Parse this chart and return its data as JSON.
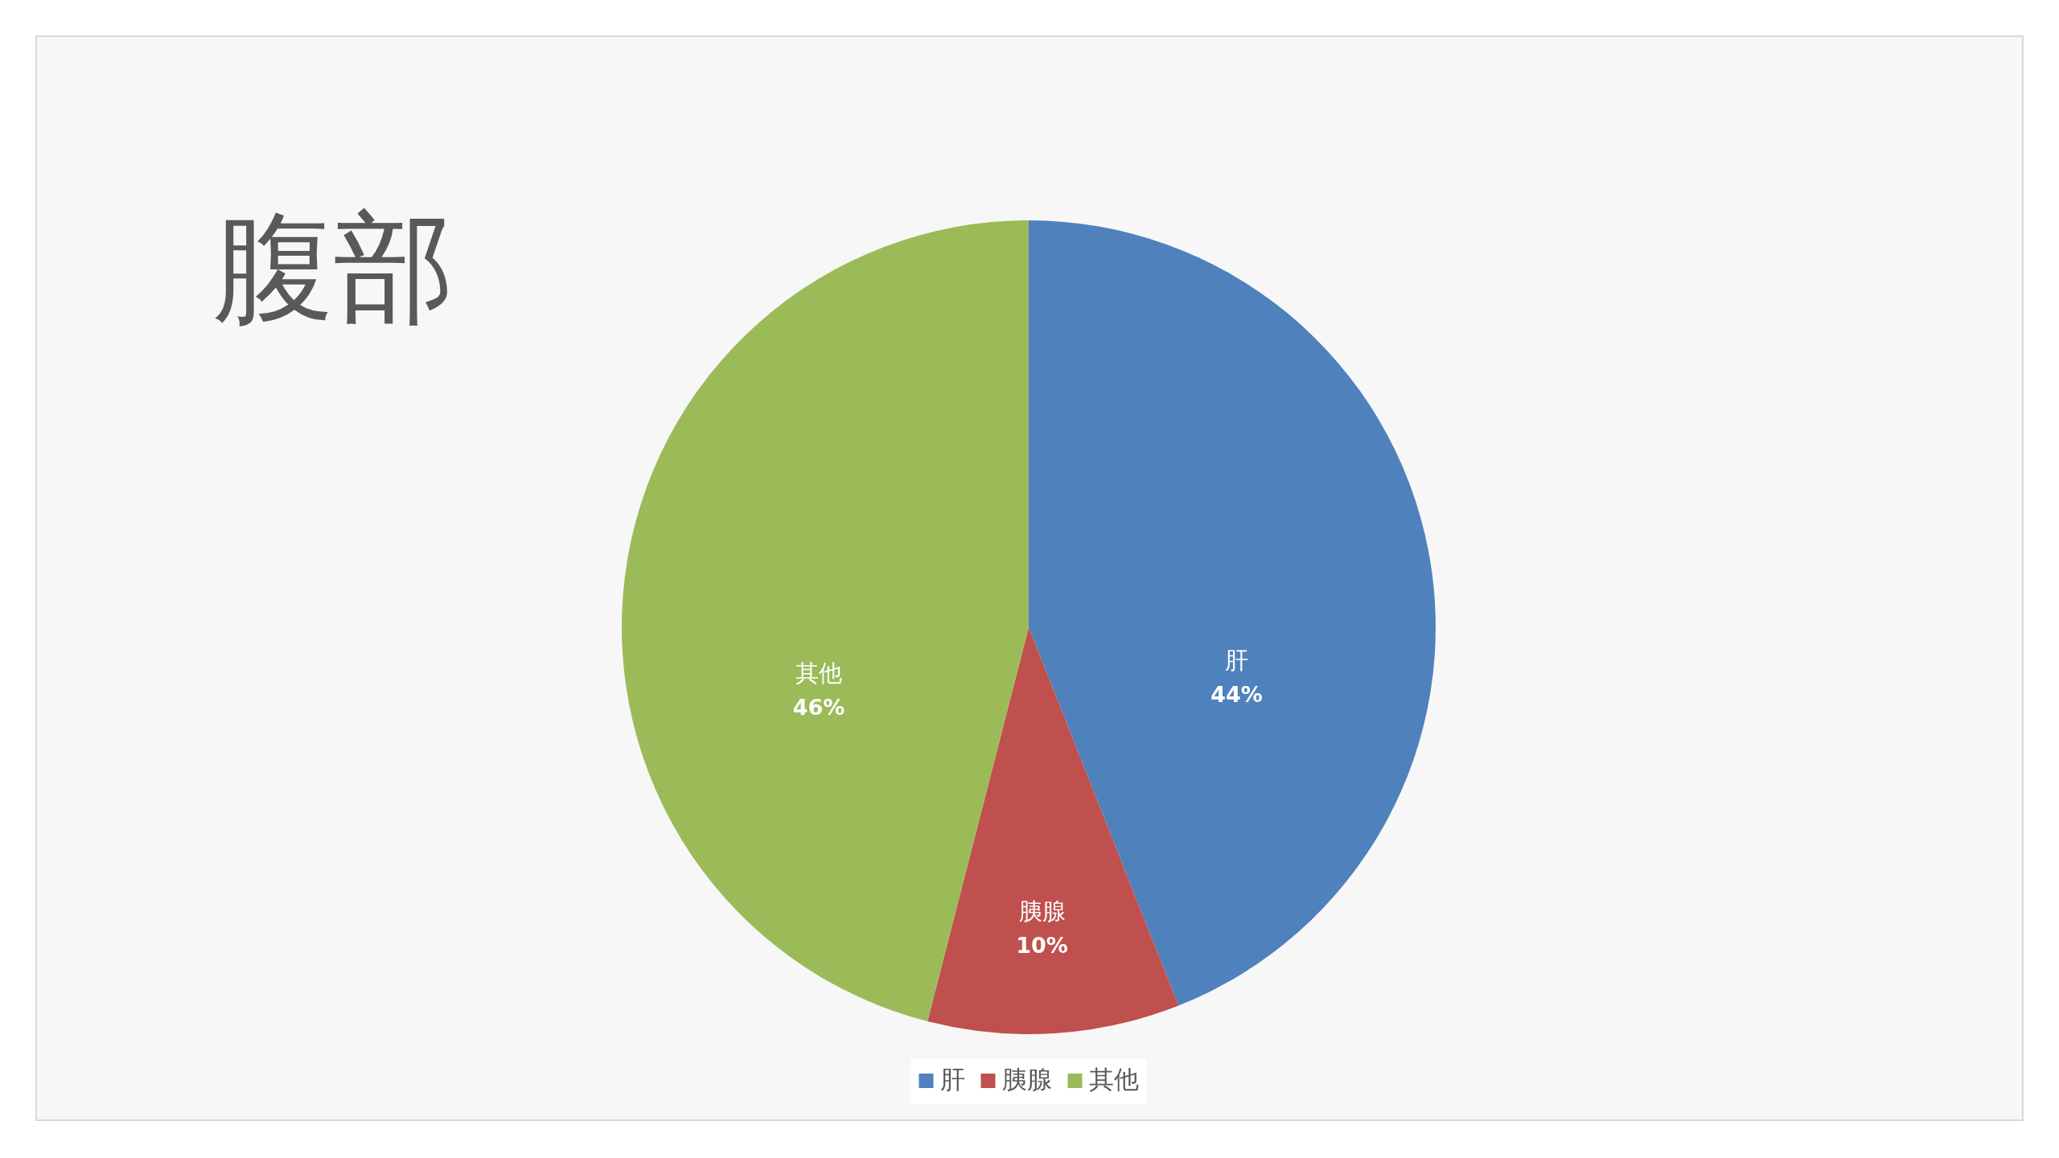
{
  "chart_data": {
    "type": "pie",
    "title": "腹部",
    "categories": [
      "肝",
      "胰腺",
      "其他"
    ],
    "values": [
      44,
      10,
      46
    ],
    "colors": [
      "#4f81bd",
      "#c0504d",
      "#9bbb59"
    ],
    "value_labels": [
      "44%",
      "10%",
      "46%"
    ],
    "legend": "bottom"
  }
}
